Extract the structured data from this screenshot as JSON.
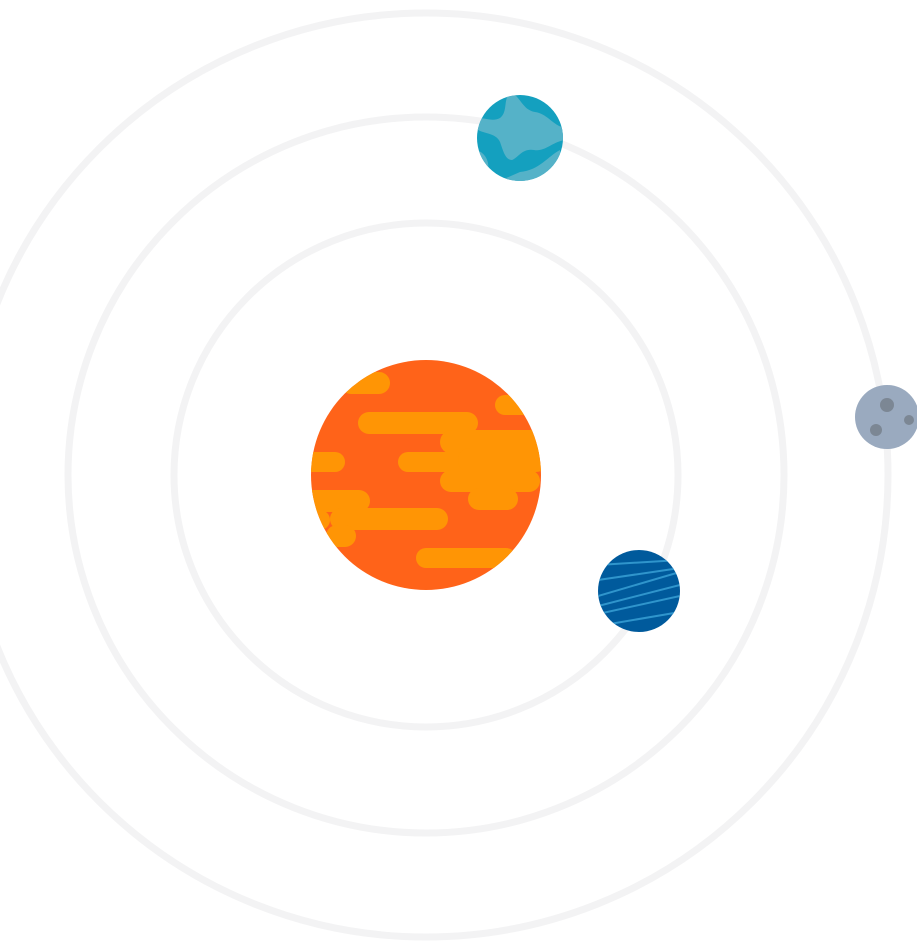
{
  "illustration": {
    "background": "#ffffff",
    "orbit_color": "#f3f3f4",
    "orbit_count": 3,
    "sun": {
      "icon": "sun-icon",
      "base_color": "#ff6319",
      "band_color": "#ff9505"
    },
    "planets": [
      {
        "name": "earth",
        "icon": "earth-icon",
        "ocean_color": "#14a0bf",
        "land_color": "#55b2c8"
      },
      {
        "name": "moon",
        "icon": "moon-icon",
        "surface_color": "#9aaabf",
        "crater_color": "#7c8794"
      },
      {
        "name": "striped-planet",
        "icon": "striped-planet-icon",
        "base_color": "#005a9c",
        "stripe_color": "#2f95cc"
      }
    ]
  }
}
